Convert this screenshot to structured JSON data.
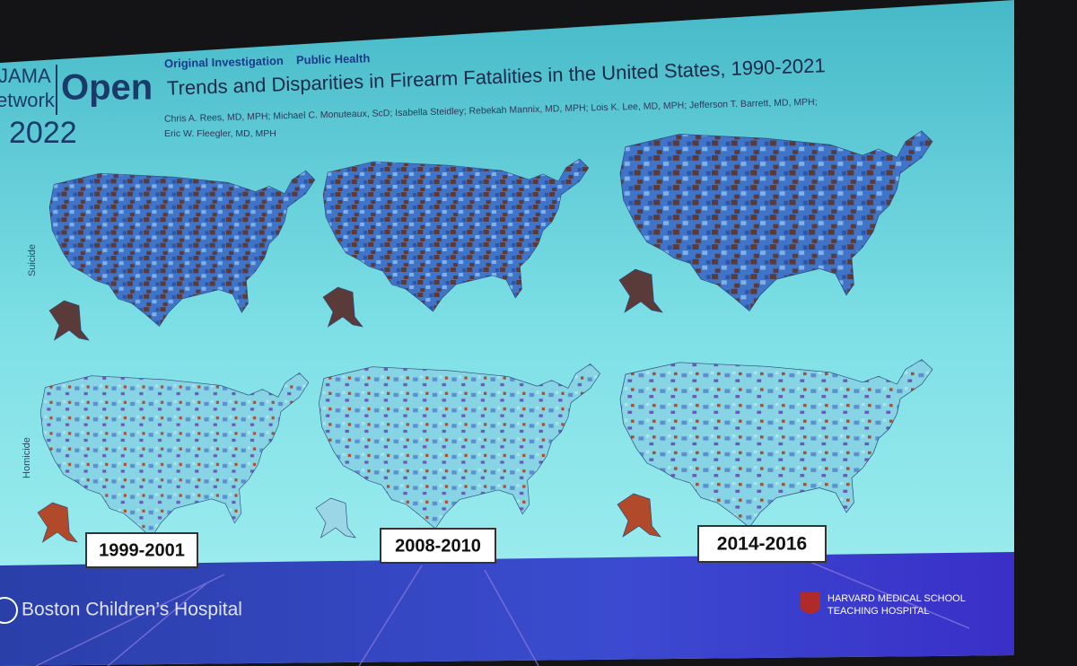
{
  "header": {
    "journal": {
      "line1": "JAMA",
      "line2": "etwork",
      "brand": "Open",
      "year": "2022"
    },
    "kicker": {
      "type": "Original Investigation",
      "section": "Public Health"
    },
    "title": "Trends and Disparities in Firearm Fatalities in the United States, 1990-2021",
    "authors": [
      "Chris A. Rees, MD, MPH; Michael C. Monuteaux, ScD; Isabella Steidley; Rebekah Mannix, MD, MPH; Lois K. Lee, MD, MPH; Jefferson T. Barrett, MD, MPH;",
      "Eric W. Fleegler, MD, MPH"
    ]
  },
  "rows": [
    "Suicide",
    "Homicide"
  ],
  "periods": [
    "1999-2001",
    "2008-2010",
    "2014-2016"
  ],
  "footer": {
    "hospital": "Boston Children’s Hospital",
    "harvard": [
      "HARVARD MEDICAL SCHOOL",
      "TEACHING HOSPITAL"
    ]
  }
}
